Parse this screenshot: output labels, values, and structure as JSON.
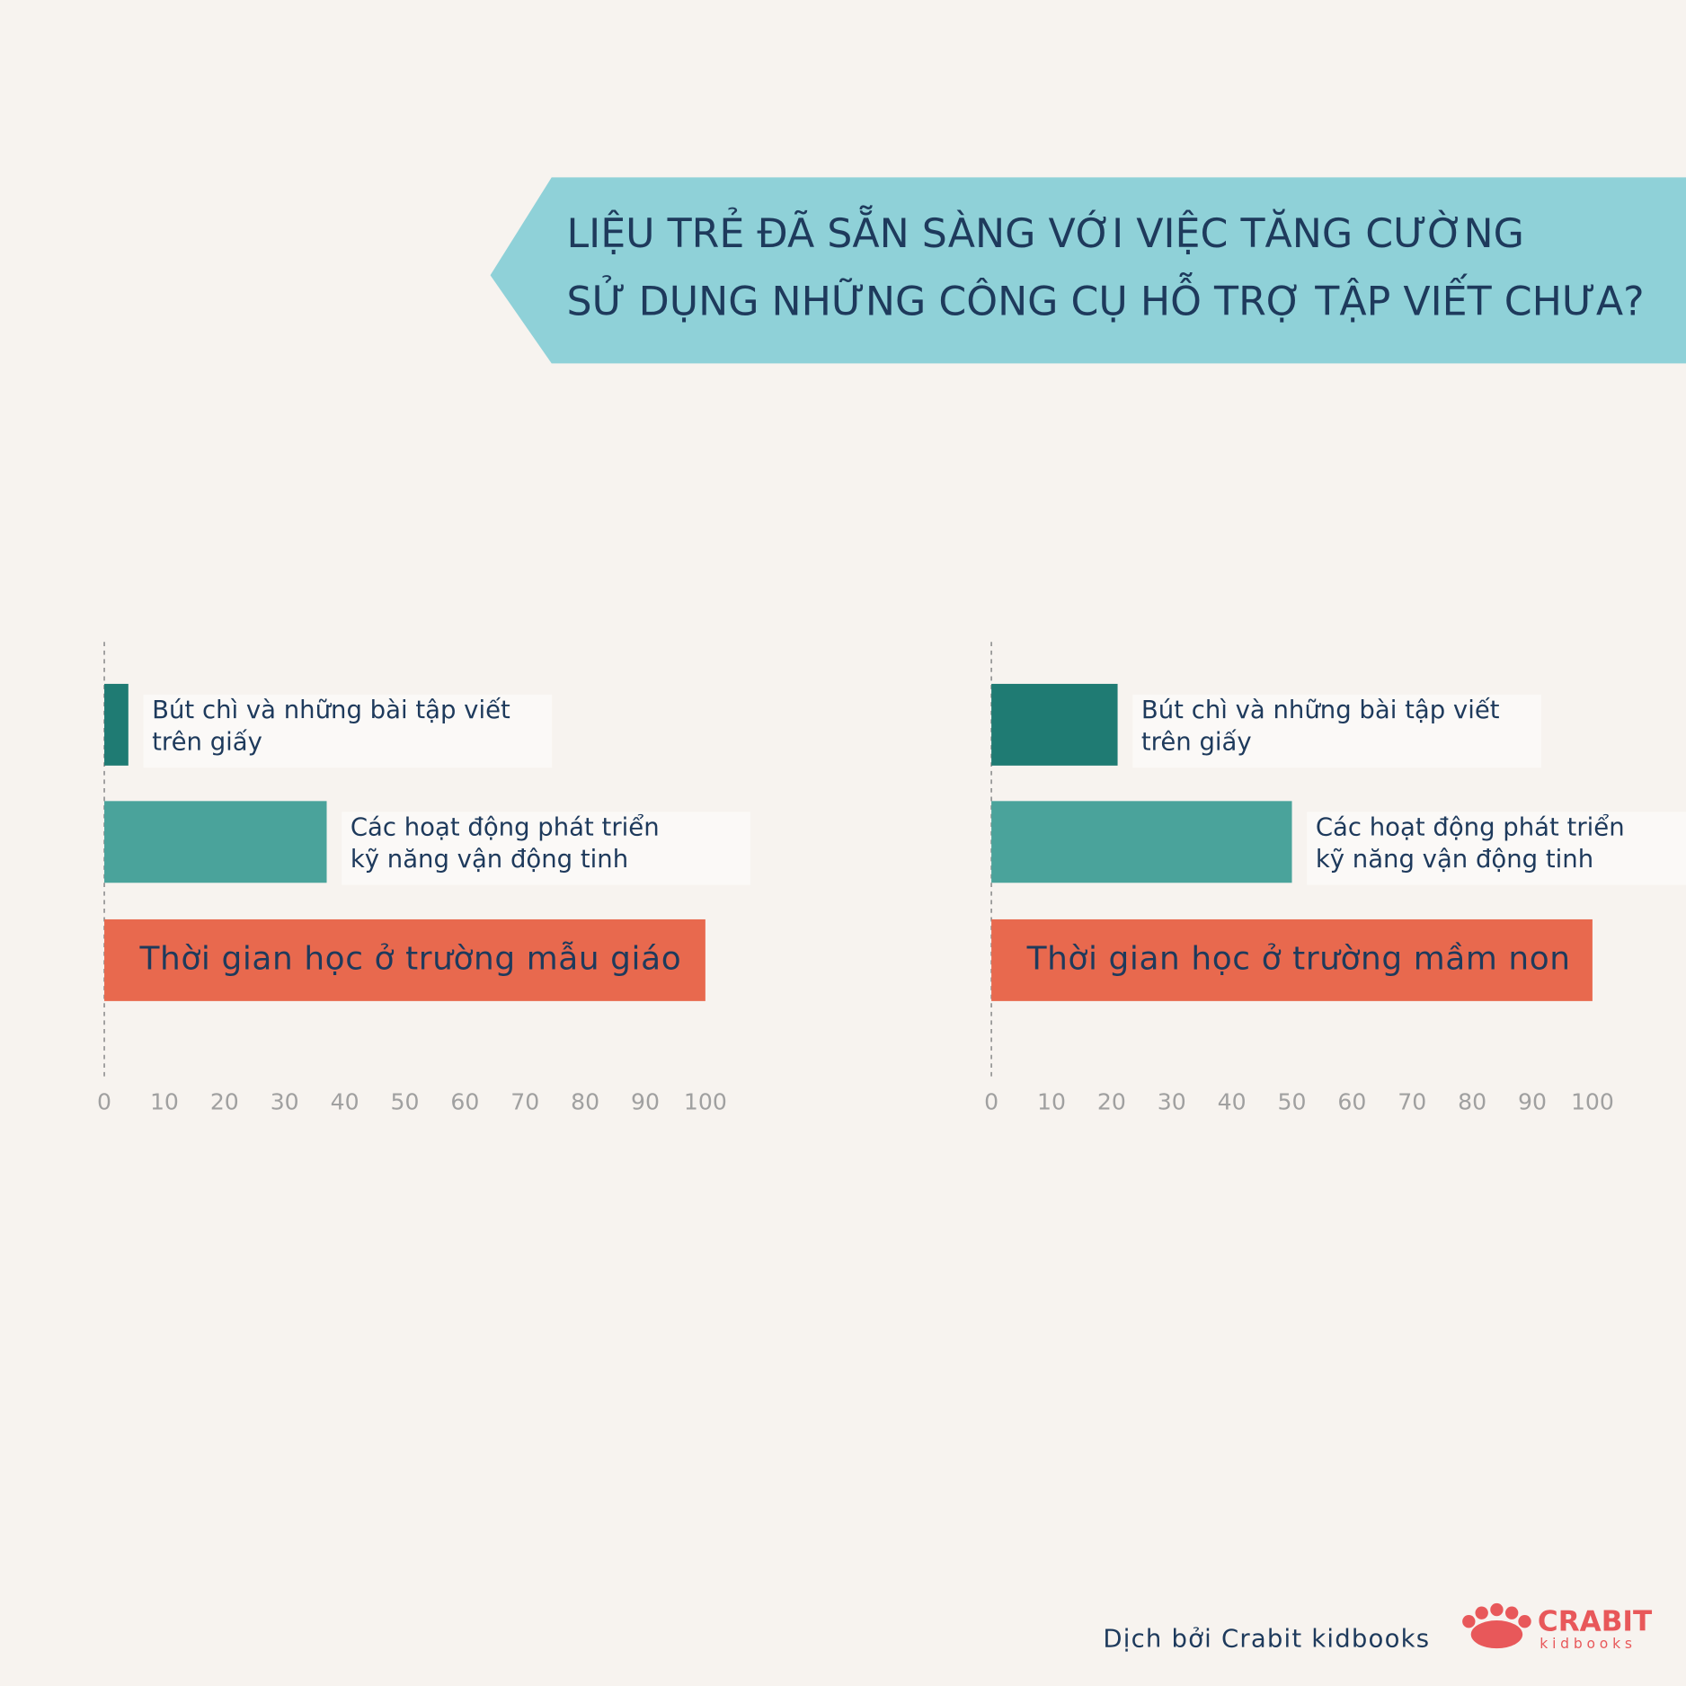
{
  "title": {
    "lines": [
      "LIỆU TRẺ ĐÃ SẴN SÀNG VỚI VIỆC TĂNG CƯỜNG",
      "SỬ DỤNG NHỮNG CÔNG CỤ HỖ TRỢ TẬP VIẾT CHƯA?"
    ]
  },
  "chart_data": [
    {
      "type": "bar",
      "orientation": "horizontal",
      "categories": [
        [
          "Bút chì và những bài tập viết",
          "trên giấy"
        ],
        [
          "Các hoạt động phát triển",
          "kỹ năng vận động tinh"
        ],
        [
          "Thời gian học ở trường mẫu giáo"
        ]
      ],
      "values": [
        4,
        37,
        100
      ],
      "colors": [
        "#1f7b73",
        "#4aa39b",
        "#e8694e"
      ],
      "xlim": [
        0,
        100
      ],
      "xticks": [
        0,
        10,
        20,
        30,
        40,
        50,
        60,
        70,
        80,
        90,
        100
      ]
    },
    {
      "type": "bar",
      "orientation": "horizontal",
      "categories": [
        [
          "Bút chì và những bài tập viết",
          "trên giấy"
        ],
        [
          "Các hoạt động phát triển",
          "kỹ năng vận động tinh"
        ],
        [
          "Thời gian học ở trường mầm non"
        ]
      ],
      "values": [
        21,
        50,
        100
      ],
      "colors": [
        "#1f7b73",
        "#4aa39b",
        "#e8694e"
      ],
      "xlim": [
        0,
        100
      ],
      "xticks": [
        0,
        10,
        20,
        30,
        40,
        50,
        60,
        70,
        80,
        90,
        100
      ]
    }
  ],
  "footer": {
    "credit": "Dịch bởi Crabit kidbooks",
    "logo": [
      "CRABIT",
      "kidbooks"
    ]
  }
}
